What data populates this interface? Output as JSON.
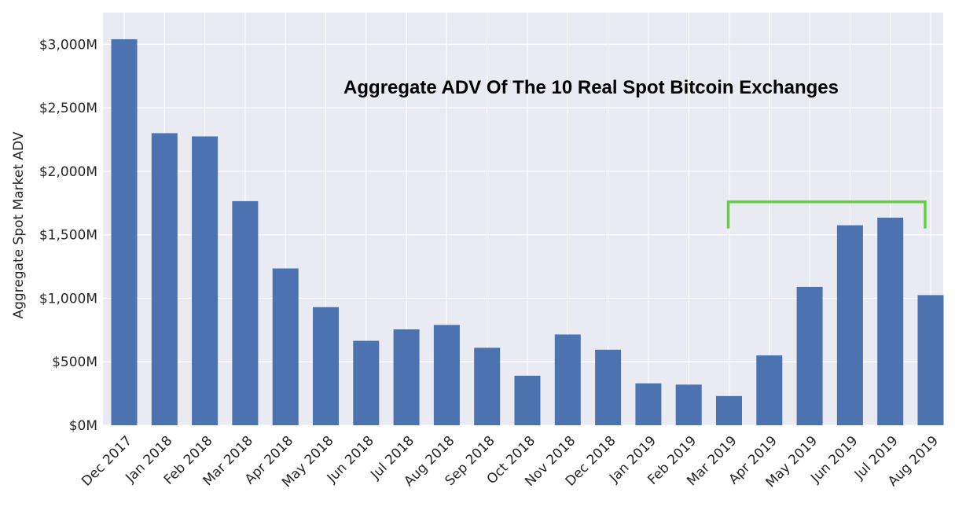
{
  "chart_data": {
    "type": "bar",
    "title": "Aggregate ADV Of The 10 Real Spot Bitcoin Exchanges",
    "xlabel": "",
    "ylabel": "Aggregate Spot Market ADV",
    "categories": [
      "Dec 2017",
      "Jan 2018",
      "Feb 2018",
      "Mar 2018",
      "Apr 2018",
      "May 2018",
      "Jun 2018",
      "Jul 2018",
      "Aug 2018",
      "Sep 2018",
      "Oct 2018",
      "Nov 2018",
      "Dec 2018",
      "Jan 2019",
      "Feb 2019",
      "Mar 2019",
      "Apr 2019",
      "May 2019",
      "Jun 2019",
      "Jul 2019",
      "Aug 2019"
    ],
    "values": [
      3040,
      2300,
      2275,
      1765,
      1235,
      930,
      665,
      755,
      790,
      610,
      390,
      715,
      595,
      330,
      320,
      230,
      550,
      1090,
      1575,
      1635,
      1025
    ],
    "unit": "$M",
    "ylim": [
      0,
      3250
    ],
    "yticks": [
      0,
      500,
      1000,
      1500,
      2000,
      2500,
      3000
    ],
    "ytick_labels": [
      "$0M",
      "$500M",
      "$1,000M",
      "$1,500M",
      "$2,000M",
      "$2,500M",
      "$3,000M"
    ],
    "grid": true,
    "bracket": {
      "from_category": "Mar 2019",
      "to_category": "Aug 2019",
      "color": "#5fd43a"
    },
    "colors": {
      "bar": "#4c72b0",
      "background": "#eaeaf2",
      "grid": "#ffffff"
    }
  }
}
